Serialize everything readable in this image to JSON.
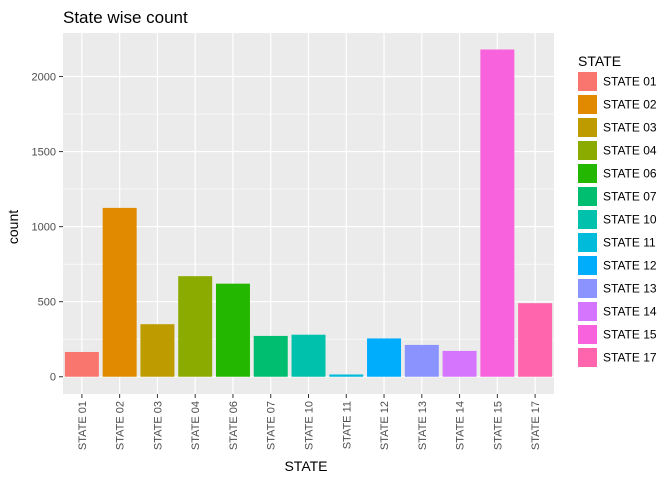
{
  "chart_data": {
    "type": "bar",
    "title": "State wise count",
    "xlabel": "STATE",
    "ylabel": "count",
    "categories": [
      "STATE 01",
      "STATE 02",
      "STATE 03",
      "STATE 04",
      "STATE 06",
      "STATE 07",
      "STATE 10",
      "STATE 11",
      "STATE 12",
      "STATE 13",
      "STATE 14",
      "STATE 15",
      "STATE 17"
    ],
    "values": [
      165,
      1125,
      350,
      670,
      620,
      272,
      280,
      15,
      255,
      212,
      172,
      2180,
      490
    ],
    "colors": [
      "#F8766D",
      "#E18A00",
      "#BE9C00",
      "#8CAB00",
      "#24B700",
      "#00BE70",
      "#00C1AB",
      "#00BBDA",
      "#00ACFC",
      "#8B93FF",
      "#D575FE",
      "#F962DD",
      "#FF65AC"
    ],
    "ylim": [
      -115,
      2290
    ],
    "yticks": [
      0,
      500,
      1000,
      1500,
      2000
    ],
    "grid": true,
    "legend": {
      "title": "STATE",
      "position": "right"
    },
    "panel_background": "#EBEBEB"
  }
}
